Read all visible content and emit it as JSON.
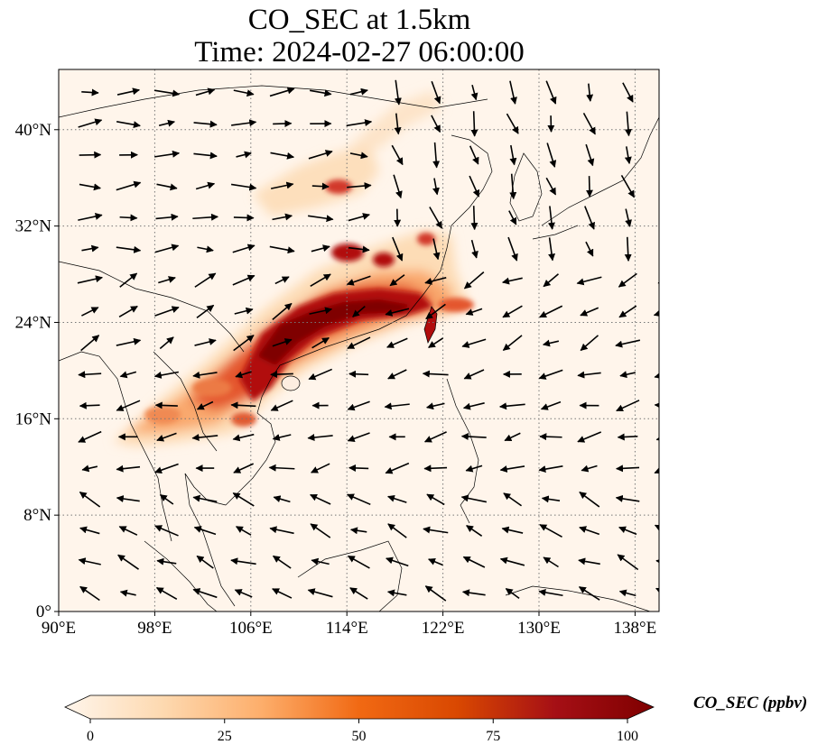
{
  "title": {
    "line1": "CO_SEC at 1.5km",
    "line2": "Time: 2024-02-27 06:00:00"
  },
  "map": {
    "lon_range": [
      90,
      140
    ],
    "lat_range": [
      0,
      45
    ],
    "lon_ticks": [
      "90°E",
      "98°E",
      "106°E",
      "114°E",
      "122°E",
      "130°E",
      "138°E"
    ],
    "lat_ticks": [
      "0°",
      "8°N",
      "16°N",
      "24°N",
      "32°N",
      "40°N"
    ],
    "lon_tick_values": [
      90,
      98,
      106,
      114,
      122,
      130,
      138
    ],
    "lat_tick_values": [
      0,
      8,
      16,
      24,
      32,
      40
    ],
    "gridlines": "dotted",
    "background_color": "#fff5eb",
    "plume_colors": [
      "#fdd9b0",
      "#f9a66a",
      "#e4572e",
      "#b10c0c",
      "#7f0000"
    ]
  },
  "colorbar": {
    "label": "CO_SEC (ppbv)",
    "ticks": [
      "0",
      "25",
      "50",
      "75",
      "100"
    ],
    "tick_values": [
      0,
      25,
      50,
      75,
      100
    ],
    "range": [
      0,
      100
    ],
    "colormap": [
      "#fff5eb",
      "#fdd9b0",
      "#fdae6b",
      "#f16913",
      "#d94801",
      "#a50f15",
      "#7f0000"
    ],
    "extend": "both"
  }
}
